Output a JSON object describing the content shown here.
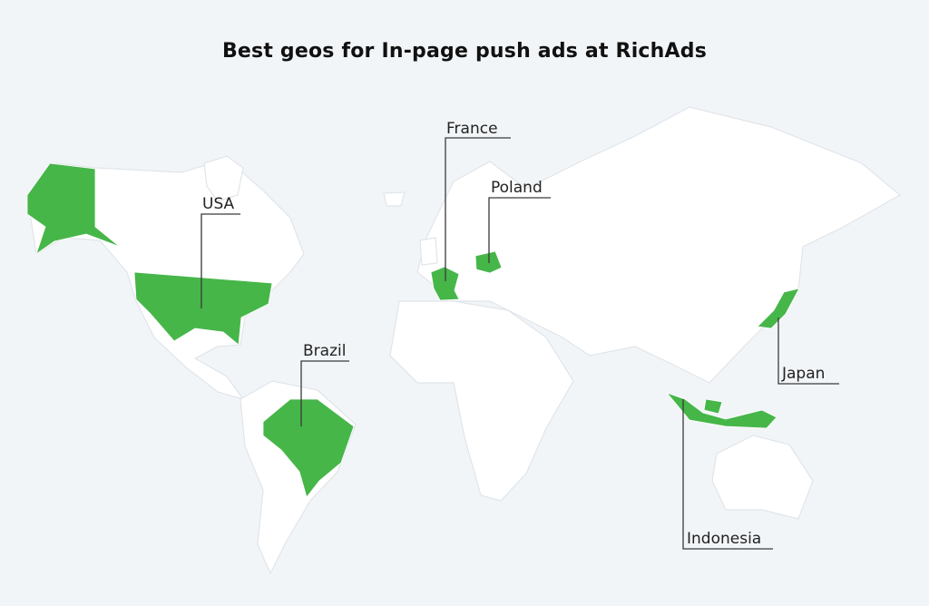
{
  "title": "Best geos for In-page push ads at RichAds",
  "colors": {
    "background": "#f2f5f8",
    "land": "#ffffff",
    "highlight": "#46b649",
    "leader_line": "#3a3a3a"
  },
  "highlighted_countries": [
    {
      "id": "usa",
      "label": "USA"
    },
    {
      "id": "france",
      "label": "France"
    },
    {
      "id": "poland",
      "label": "Poland"
    },
    {
      "id": "brazil",
      "label": "Brazil"
    },
    {
      "id": "japan",
      "label": "Japan"
    },
    {
      "id": "indonesia",
      "label": "Indonesia"
    }
  ]
}
